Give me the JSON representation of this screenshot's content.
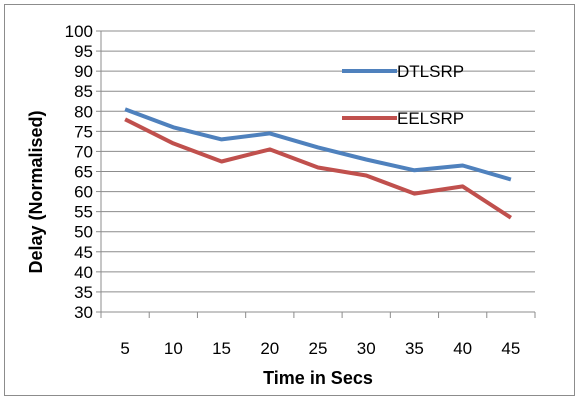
{
  "chart_data": {
    "type": "line",
    "xlabel": "Time in Secs",
    "ylabel": "Delay (Normalised)",
    "categories": [
      "5",
      "10",
      "15",
      "20",
      "25",
      "30",
      "35",
      "40",
      "45"
    ],
    "y_ticks": [
      "30",
      "35",
      "40",
      "45",
      "50",
      "55",
      "60",
      "65",
      "70",
      "75",
      "80",
      "85",
      "90",
      "95",
      "100"
    ],
    "ylim": [
      30,
      100
    ],
    "grid": "horizontal",
    "legend_position": "top-right",
    "series": [
      {
        "name": "DTLSRP",
        "color": "#4f81bd",
        "values": [
          80.5,
          76,
          73,
          74.5,
          71,
          68,
          65.3,
          66.5,
          63
        ]
      },
      {
        "name": "EELSRP",
        "color": "#c0504d",
        "values": [
          78,
          72,
          67.5,
          70.5,
          66,
          64,
          59.5,
          61.3,
          53.5
        ]
      }
    ]
  }
}
